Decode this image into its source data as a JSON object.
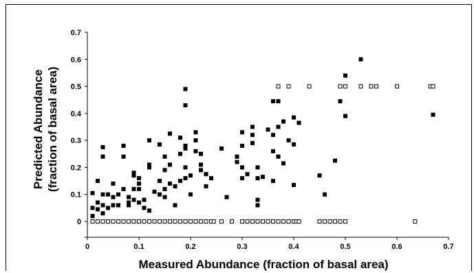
{
  "chart_data": {
    "type": "scatter",
    "xlabel": "Measured Abundance (fraction of basal area)",
    "ylabel_line1": "Predicted Abundance",
    "ylabel_line2": "(fraction of basal area)",
    "xlim": [
      0,
      0.7
    ],
    "ylim": [
      0,
      0.7
    ],
    "x_ticks": [
      "0",
      "0.1",
      "0.2",
      "0.3",
      "0.4",
      "0.5",
      "0.6",
      "0.7"
    ],
    "y_ticks": [
      "0",
      "0.1",
      "0.2",
      "0.3",
      "0.4",
      "0.5",
      "0.6",
      "0.7"
    ],
    "grid": false,
    "legend": "none",
    "series": [
      {
        "marker": "filled-square",
        "color": "#000000",
        "points": [
          [
            0.01,
            0.105
          ],
          [
            0.02,
            0.15
          ],
          [
            0.01,
            0.05
          ],
          [
            0.01,
            0.02
          ],
          [
            0.02,
            0.07
          ],
          [
            0.02,
            0.045
          ],
          [
            0.03,
            0.1
          ],
          [
            0.03,
            0.06
          ],
          [
            0.03,
            0.03
          ],
          [
            0.03,
            0.24
          ],
          [
            0.03,
            0.275
          ],
          [
            0.04,
            0.1
          ],
          [
            0.04,
            0.05
          ],
          [
            0.05,
            0.14
          ],
          [
            0.05,
            0.09
          ],
          [
            0.05,
            0.06
          ],
          [
            0.06,
            0.1
          ],
          [
            0.06,
            0.06
          ],
          [
            0.07,
            0.12
          ],
          [
            0.07,
            0.28
          ],
          [
            0.07,
            0.24
          ],
          [
            0.08,
            0.09
          ],
          [
            0.08,
            0.07
          ],
          [
            0.08,
            0.06
          ],
          [
            0.09,
            0.12
          ],
          [
            0.09,
            0.08
          ],
          [
            0.09,
            0.17
          ],
          [
            0.09,
            0.18
          ],
          [
            0.1,
            0.16
          ],
          [
            0.1,
            0.14
          ],
          [
            0.1,
            0.12
          ],
          [
            0.1,
            0.07
          ],
          [
            0.11,
            0.05
          ],
          [
            0.11,
            0.08
          ],
          [
            0.12,
            0.3
          ],
          [
            0.12,
            0.2
          ],
          [
            0.12,
            0.21
          ],
          [
            0.12,
            0.04
          ],
          [
            0.13,
            0.11
          ],
          [
            0.14,
            0.285
          ],
          [
            0.14,
            0.15
          ],
          [
            0.14,
            0.1
          ],
          [
            0.15,
            0.24
          ],
          [
            0.15,
            0.19
          ],
          [
            0.15,
            0.12
          ],
          [
            0.15,
            0.09
          ],
          [
            0.16,
            0.325
          ],
          [
            0.16,
            0.21
          ],
          [
            0.16,
            0.14
          ],
          [
            0.17,
            0.06
          ],
          [
            0.17,
            0.13
          ],
          [
            0.18,
            0.31
          ],
          [
            0.18,
            0.25
          ],
          [
            0.18,
            0.15
          ],
          [
            0.19,
            0.49
          ],
          [
            0.19,
            0.43
          ],
          [
            0.19,
            0.28
          ],
          [
            0.19,
            0.27
          ],
          [
            0.19,
            0.2
          ],
          [
            0.19,
            0.16
          ],
          [
            0.2,
            0.17
          ],
          [
            0.2,
            0.1
          ],
          [
            0.21,
            0.33
          ],
          [
            0.21,
            0.3
          ],
          [
            0.21,
            0.26
          ],
          [
            0.22,
            0.25
          ],
          [
            0.22,
            0.21
          ],
          [
            0.22,
            0.19
          ],
          [
            0.23,
            0.175
          ],
          [
            0.23,
            0.13
          ],
          [
            0.24,
            0.16
          ],
          [
            0.26,
            0.27
          ],
          [
            0.27,
            0.09
          ],
          [
            0.29,
            0.24
          ],
          [
            0.29,
            0.22
          ],
          [
            0.3,
            0.33
          ],
          [
            0.3,
            0.28
          ],
          [
            0.3,
            0.2
          ],
          [
            0.3,
            0.16
          ],
          [
            0.31,
            0.175
          ],
          [
            0.32,
            0.35
          ],
          [
            0.32,
            0.32
          ],
          [
            0.32,
            0.29
          ],
          [
            0.33,
            0.2
          ],
          [
            0.33,
            0.16
          ],
          [
            0.33,
            0.08
          ],
          [
            0.33,
            0.06
          ],
          [
            0.34,
            0.165
          ],
          [
            0.35,
            0.34
          ],
          [
            0.36,
            0.445
          ],
          [
            0.36,
            0.32
          ],
          [
            0.36,
            0.26
          ],
          [
            0.36,
            0.15
          ],
          [
            0.37,
            0.445
          ],
          [
            0.37,
            0.35
          ],
          [
            0.37,
            0.24
          ],
          [
            0.38,
            0.37
          ],
          [
            0.38,
            0.215
          ],
          [
            0.39,
            0.3
          ],
          [
            0.4,
            0.385
          ],
          [
            0.4,
            0.285
          ],
          [
            0.4,
            0.135
          ],
          [
            0.41,
            0.365
          ],
          [
            0.45,
            0.17
          ],
          [
            0.46,
            0.1
          ],
          [
            0.48,
            0.225
          ],
          [
            0.49,
            0.445
          ],
          [
            0.5,
            0.54
          ],
          [
            0.5,
            0.39
          ],
          [
            0.53,
            0.6
          ],
          [
            0.67,
            0.395
          ]
        ]
      },
      {
        "marker": "open-square",
        "color": "#000000",
        "points": [
          [
            0.01,
            0
          ],
          [
            0.02,
            0
          ],
          [
            0.03,
            0
          ],
          [
            0.04,
            0
          ],
          [
            0.05,
            0
          ],
          [
            0.06,
            0
          ],
          [
            0.07,
            0
          ],
          [
            0.08,
            0
          ],
          [
            0.09,
            0
          ],
          [
            0.1,
            0
          ],
          [
            0.11,
            0
          ],
          [
            0.12,
            0
          ],
          [
            0.13,
            0
          ],
          [
            0.14,
            0
          ],
          [
            0.15,
            0
          ],
          [
            0.16,
            0
          ],
          [
            0.17,
            0
          ],
          [
            0.18,
            0
          ],
          [
            0.19,
            0
          ],
          [
            0.2,
            0
          ],
          [
            0.21,
            0
          ],
          [
            0.22,
            0
          ],
          [
            0.23,
            0
          ],
          [
            0.24,
            0
          ],
          [
            0.245,
            0
          ],
          [
            0.26,
            0
          ],
          [
            0.28,
            0
          ],
          [
            0.3,
            0
          ],
          [
            0.31,
            0
          ],
          [
            0.32,
            0
          ],
          [
            0.33,
            0
          ],
          [
            0.34,
            0
          ],
          [
            0.35,
            0
          ],
          [
            0.36,
            0
          ],
          [
            0.37,
            0
          ],
          [
            0.38,
            0
          ],
          [
            0.39,
            0
          ],
          [
            0.4,
            0
          ],
          [
            0.405,
            0
          ],
          [
            0.41,
            0
          ],
          [
            0.45,
            0
          ],
          [
            0.46,
            0
          ],
          [
            0.47,
            0
          ],
          [
            0.48,
            0
          ],
          [
            0.49,
            0
          ],
          [
            0.5,
            0
          ],
          [
            0.635,
            0
          ],
          [
            0.37,
            0.5
          ],
          [
            0.39,
            0.5
          ],
          [
            0.43,
            0.5
          ],
          [
            0.49,
            0.5
          ],
          [
            0.5,
            0.5
          ],
          [
            0.53,
            0.5
          ],
          [
            0.55,
            0.5
          ],
          [
            0.56,
            0.5
          ],
          [
            0.6,
            0.5
          ],
          [
            0.665,
            0.5
          ],
          [
            0.67,
            0.5
          ]
        ]
      }
    ]
  }
}
